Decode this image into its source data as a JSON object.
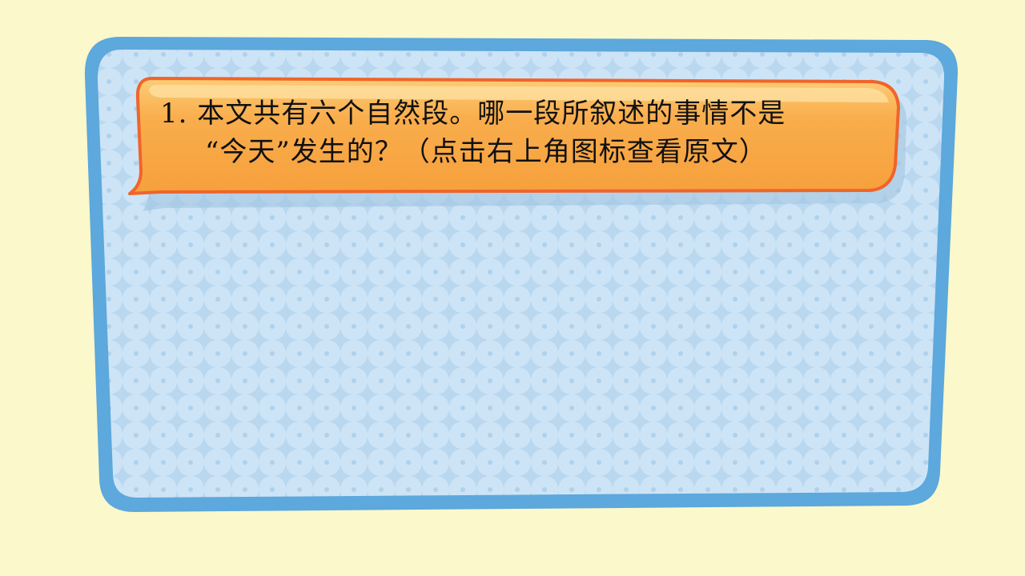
{
  "slide": {
    "question": {
      "line1": "1. 本文共有六个自然段。哪一段所叙述的事情不是",
      "line2": "“今天”发生的？（点击右上角图标查看原文）"
    }
  },
  "colors": {
    "page_background": "#fbf8cb",
    "board_frame": "#5da8dc",
    "board_fill": "#cde4f6",
    "board_pattern": "#b7d6ef",
    "banner_fill": "#f9a843",
    "banner_border": "#f0642a",
    "banner_highlight": "#fccd77"
  }
}
